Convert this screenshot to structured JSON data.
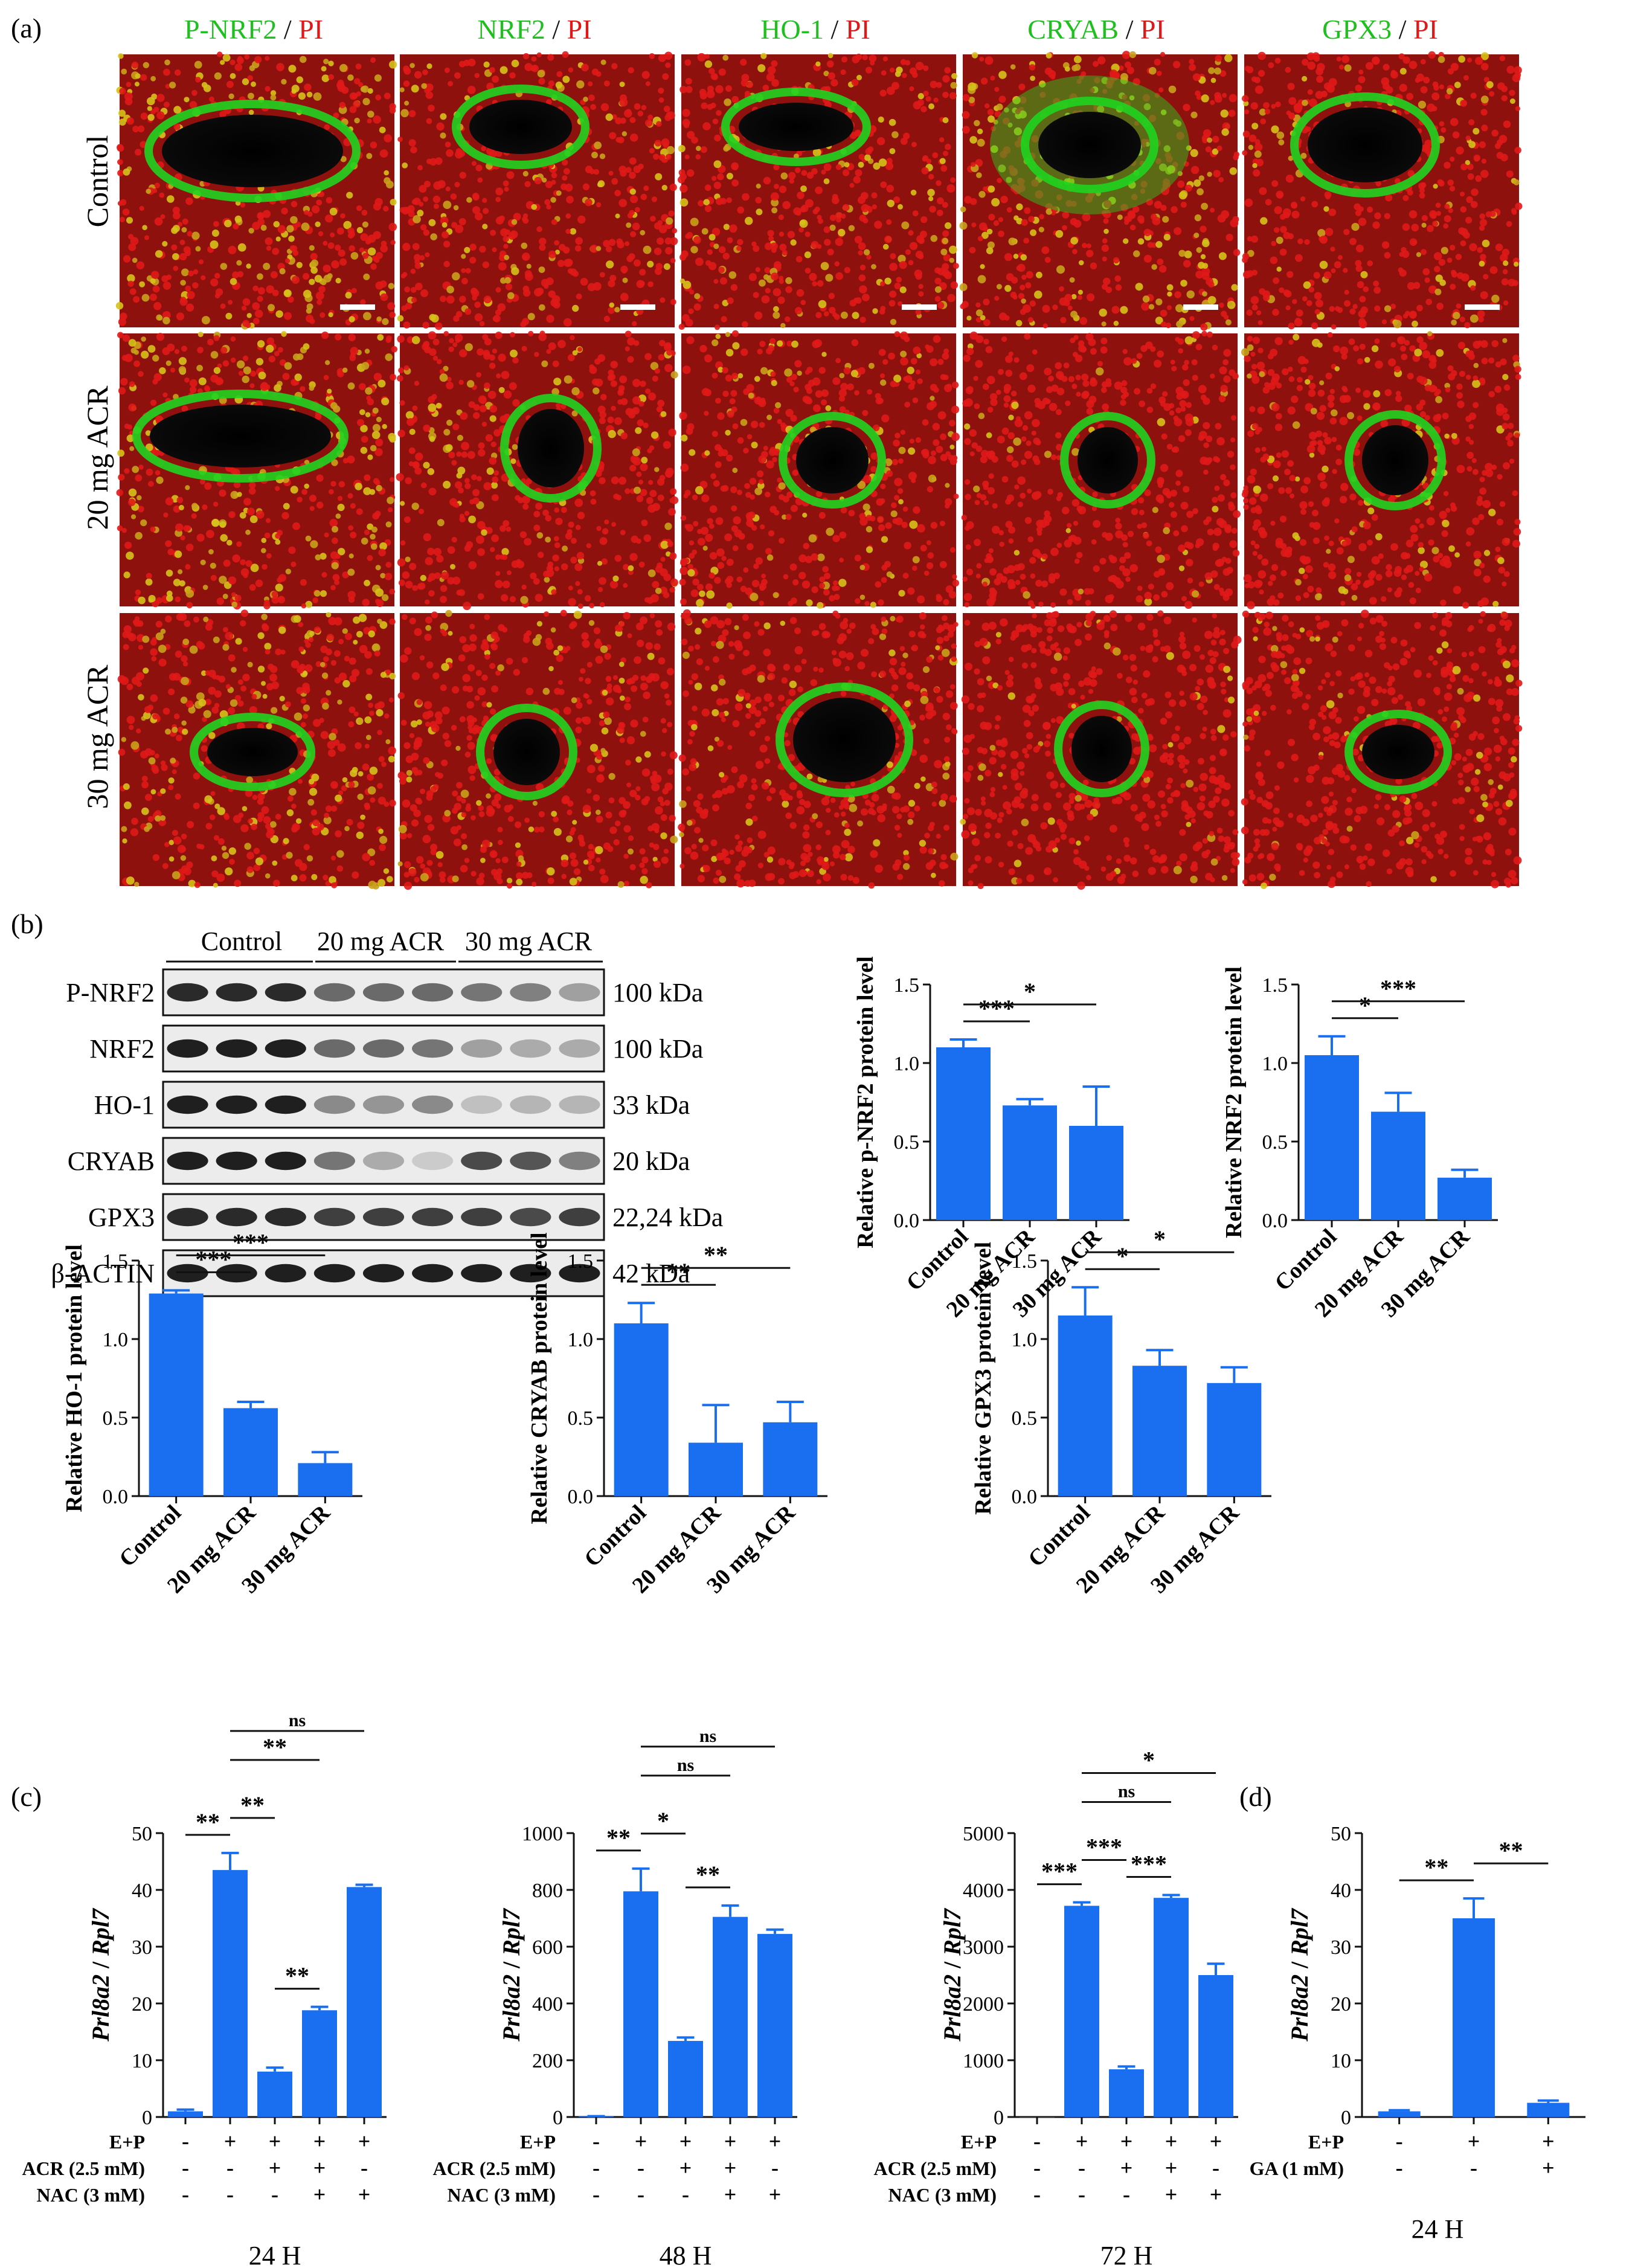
{
  "panel_labels": {
    "a": "(a)",
    "b": "(b)",
    "c": "(c)",
    "d": "(d)"
  },
  "colors": {
    "bar": "#1a6ff0",
    "green": "#1fd41f",
    "red": "#e01818",
    "tissue_red": "#d31a13",
    "tissue_dark": "#3a0808",
    "lumen": "#050505"
  },
  "panel_a": {
    "column_headers": [
      {
        "marker": "P-NRF2",
        "sep": " / ",
        "stain": "PI"
      },
      {
        "marker": "NRF2",
        "sep": " / ",
        "stain": "PI"
      },
      {
        "marker": "HO-1",
        "sep": " / ",
        "stain": "PI"
      },
      {
        "marker": "CRYAB",
        "sep": " / ",
        "stain": "PI"
      },
      {
        "marker": "GPX3",
        "sep": " / ",
        "stain": "PI"
      }
    ],
    "row_labels": [
      "Control",
      "20 mg ACR",
      "30 mg ACR"
    ],
    "tile_intensity": [
      [
        0.85,
        0.45,
        0.55,
        0.75,
        0.35
      ],
      [
        0.8,
        0.4,
        0.45,
        0.15,
        0.3
      ],
      [
        0.75,
        0.35,
        0.35,
        0.15,
        0.2
      ]
    ]
  },
  "panel_b_blot": {
    "group_labels": [
      "Control",
      "20 mg ACR",
      "30 mg ACR"
    ],
    "rows": [
      {
        "protein": "P-NRF2",
        "kda": "100 kDa",
        "band": [
          0.9,
          0.9,
          0.9,
          0.6,
          0.6,
          0.6,
          0.55,
          0.5,
          0.35
        ]
      },
      {
        "protein": "NRF2",
        "kda": "100 kDa",
        "band": [
          0.95,
          0.95,
          0.95,
          0.6,
          0.6,
          0.55,
          0.35,
          0.3,
          0.3
        ]
      },
      {
        "protein": "HO-1",
        "kda": "33 kDa",
        "band": [
          0.95,
          0.95,
          0.95,
          0.45,
          0.4,
          0.45,
          0.2,
          0.25,
          0.25
        ]
      },
      {
        "protein": "CRYAB",
        "kda": "20 kDa",
        "band": [
          0.95,
          0.95,
          0.95,
          0.55,
          0.3,
          0.15,
          0.75,
          0.7,
          0.5
        ]
      },
      {
        "protein": "GPX3",
        "kda": "22,24 kDa",
        "band": [
          0.9,
          0.9,
          0.9,
          0.8,
          0.8,
          0.8,
          0.8,
          0.75,
          0.8
        ]
      },
      {
        "protein": "β-ACTIN",
        "kda": "42 kDa",
        "band": [
          0.95,
          0.95,
          0.95,
          0.95,
          0.95,
          0.95,
          0.95,
          0.95,
          0.95
        ]
      }
    ]
  },
  "chart_data": [
    {
      "id": "b1",
      "type": "bar",
      "categories": [
        "Control",
        "20 mg ACR",
        "30 mg ACR"
      ],
      "values": [
        1.1,
        0.73,
        0.6
      ],
      "errors": [
        0.05,
        0.04,
        0.25
      ],
      "ylabel": "Relative p-NRF2 protein level",
      "ylim": [
        0,
        1.5
      ],
      "yticks": [
        "0.0",
        "0.5",
        "1.0",
        "1.5"
      ],
      "sig": [
        {
          "from": 0,
          "to": 1,
          "label": "***"
        },
        {
          "from": 0,
          "to": 2,
          "label": "*"
        }
      ]
    },
    {
      "id": "b2",
      "type": "bar",
      "categories": [
        "Control",
        "20 mg ACR",
        "30 mg ACR"
      ],
      "values": [
        1.05,
        0.69,
        0.27
      ],
      "errors": [
        0.12,
        0.12,
        0.05
      ],
      "ylabel": "Relative NRF2 protein level",
      "ylim": [
        0,
        1.5
      ],
      "yticks": [
        "0.0",
        "0.5",
        "1.0",
        "1.5"
      ],
      "sig": [
        {
          "from": 0,
          "to": 1,
          "label": "*"
        },
        {
          "from": 0,
          "to": 2,
          "label": "***"
        }
      ]
    },
    {
      "id": "b3",
      "type": "bar",
      "categories": [
        "Control",
        "20 mg ACR",
        "30 mg ACR"
      ],
      "values": [
        1.29,
        0.56,
        0.21
      ],
      "errors": [
        0.02,
        0.04,
        0.07
      ],
      "ylabel": "Relative HO-1 protein level",
      "ylim": [
        0,
        1.5
      ],
      "yticks": [
        "0.0",
        "0.5",
        "1.0",
        "1.5"
      ],
      "sig": [
        {
          "from": 0,
          "to": 1,
          "label": "***"
        },
        {
          "from": 0,
          "to": 2,
          "label": "***"
        }
      ]
    },
    {
      "id": "b4",
      "type": "bar",
      "categories": [
        "Control",
        "20 mg ACR",
        "30 mg ACR"
      ],
      "values": [
        1.1,
        0.34,
        0.47
      ],
      "errors": [
        0.13,
        0.24,
        0.13
      ],
      "ylabel": "Relative CRYAB protein level",
      "ylim": [
        0,
        1.5
      ],
      "yticks": [
        "0.0",
        "0.5",
        "1.0",
        "1.5"
      ],
      "sig": [
        {
          "from": 0,
          "to": 1,
          "label": "**"
        },
        {
          "from": 0,
          "to": 2,
          "label": "**"
        }
      ]
    },
    {
      "id": "b5",
      "type": "bar",
      "categories": [
        "Control",
        "20 mg ACR",
        "30 mg ACR"
      ],
      "values": [
        1.15,
        0.83,
        0.72
      ],
      "errors": [
        0.18,
        0.1,
        0.1
      ],
      "ylabel": "Relative GPX3 protein level",
      "ylim": [
        0,
        1.5
      ],
      "yticks": [
        "0.0",
        "0.5",
        "1.0",
        "1.5"
      ],
      "sig": [
        {
          "from": 0,
          "to": 1,
          "label": "*"
        },
        {
          "from": 0,
          "to": 2,
          "label": "*"
        }
      ]
    },
    {
      "id": "c1",
      "type": "bar",
      "values": [
        1,
        43.5,
        8,
        18.8,
        40.5
      ],
      "errors": [
        0.3,
        3,
        0.7,
        0.6,
        0.4
      ],
      "ylabel_gene": "Prl8a2",
      "ylabel_sep": " / ",
      "ylabel_ref": "Rpl7",
      "ylim": [
        0,
        50
      ],
      "yticks": [
        "0",
        "10",
        "20",
        "30",
        "40",
        "50"
      ],
      "treatments": [
        {
          "name": "E+P",
          "marks": [
            "-",
            "+",
            "+",
            "+",
            "+"
          ]
        },
        {
          "name": "ACR (2.5 mM)",
          "marks": [
            "-",
            "-",
            "+",
            "+",
            "-"
          ]
        },
        {
          "name": "NAC (3 mM)",
          "marks": [
            "-",
            "-",
            "-",
            "+",
            "+"
          ]
        }
      ],
      "time": "24 H",
      "sig": [
        {
          "from": 0,
          "to": 1,
          "label": "**"
        },
        {
          "from": 1,
          "to": 2,
          "label": "**"
        },
        {
          "from": 1,
          "to": 3,
          "label": "**"
        },
        {
          "from": 1,
          "to": 4,
          "label": "ns"
        },
        {
          "from": 2,
          "to": 3,
          "label": "**"
        }
      ]
    },
    {
      "id": "c2",
      "type": "bar",
      "values": [
        2,
        795,
        268,
        705,
        645
      ],
      "errors": [
        1,
        80,
        12,
        40,
        15
      ],
      "ylabel_gene": "Prl8a2",
      "ylabel_sep": " / ",
      "ylabel_ref": "Rpl7",
      "ylim": [
        0,
        1000
      ],
      "yticks": [
        "0",
        "200",
        "400",
        "600",
        "800",
        "1000"
      ],
      "treatments": [
        {
          "name": "E+P",
          "marks": [
            "-",
            "+",
            "+",
            "+",
            "+"
          ]
        },
        {
          "name": "ACR (2.5 mM)",
          "marks": [
            "-",
            "-",
            "+",
            "+",
            "-"
          ]
        },
        {
          "name": "NAC (3 mM)",
          "marks": [
            "-",
            "-",
            "-",
            "+",
            "+"
          ]
        }
      ],
      "time": "48 H",
      "sig": [
        {
          "from": 0,
          "to": 1,
          "label": "**"
        },
        {
          "from": 1,
          "to": 2,
          "label": "*"
        },
        {
          "from": 1,
          "to": 3,
          "label": "ns"
        },
        {
          "from": 1,
          "to": 4,
          "label": "ns"
        },
        {
          "from": 2,
          "to": 3,
          "label": "**"
        }
      ]
    },
    {
      "id": "c3",
      "type": "bar",
      "values": [
        0,
        3720,
        840,
        3860,
        2500
      ],
      "errors": [
        0,
        60,
        50,
        50,
        200
      ],
      "ylabel_gene": "Prl8a2",
      "ylabel_sep": " / ",
      "ylabel_ref": "Rpl7",
      "ylim": [
        0,
        5000
      ],
      "yticks": [
        "0",
        "1000",
        "2000",
        "3000",
        "4000",
        "5000"
      ],
      "treatments": [
        {
          "name": "E+P",
          "marks": [
            "-",
            "+",
            "+",
            "+",
            "+"
          ]
        },
        {
          "name": "ACR (2.5 mM)",
          "marks": [
            "-",
            "-",
            "+",
            "+",
            "-"
          ]
        },
        {
          "name": "NAC (3 mM)",
          "marks": [
            "-",
            "-",
            "-",
            "+",
            "+"
          ]
        }
      ],
      "time": "72 H",
      "sig": [
        {
          "from": 0,
          "to": 1,
          "label": "***"
        },
        {
          "from": 1,
          "to": 2,
          "label": "***"
        },
        {
          "from": 1,
          "to": 3,
          "label": "ns"
        },
        {
          "from": 1,
          "to": 4,
          "label": "*"
        },
        {
          "from": 2,
          "to": 3,
          "label": "***"
        }
      ]
    },
    {
      "id": "d1",
      "type": "bar",
      "values": [
        1,
        35,
        2.5
      ],
      "errors": [
        0.2,
        3.5,
        0.4
      ],
      "ylabel_gene": "Prl8a2",
      "ylabel_sep": " / ",
      "ylabel_ref": "Rpl7",
      "ylim": [
        0,
        50
      ],
      "yticks": [
        "0",
        "10",
        "20",
        "30",
        "40",
        "50"
      ],
      "treatments": [
        {
          "name": "E+P",
          "marks": [
            "-",
            "+",
            "+"
          ]
        },
        {
          "name": "GA (1 mM)",
          "marks": [
            "-",
            "-",
            "+"
          ]
        }
      ],
      "time": "24 H",
      "sig": [
        {
          "from": 0,
          "to": 1,
          "label": "**"
        },
        {
          "from": 1,
          "to": 2,
          "label": "**"
        }
      ]
    }
  ]
}
